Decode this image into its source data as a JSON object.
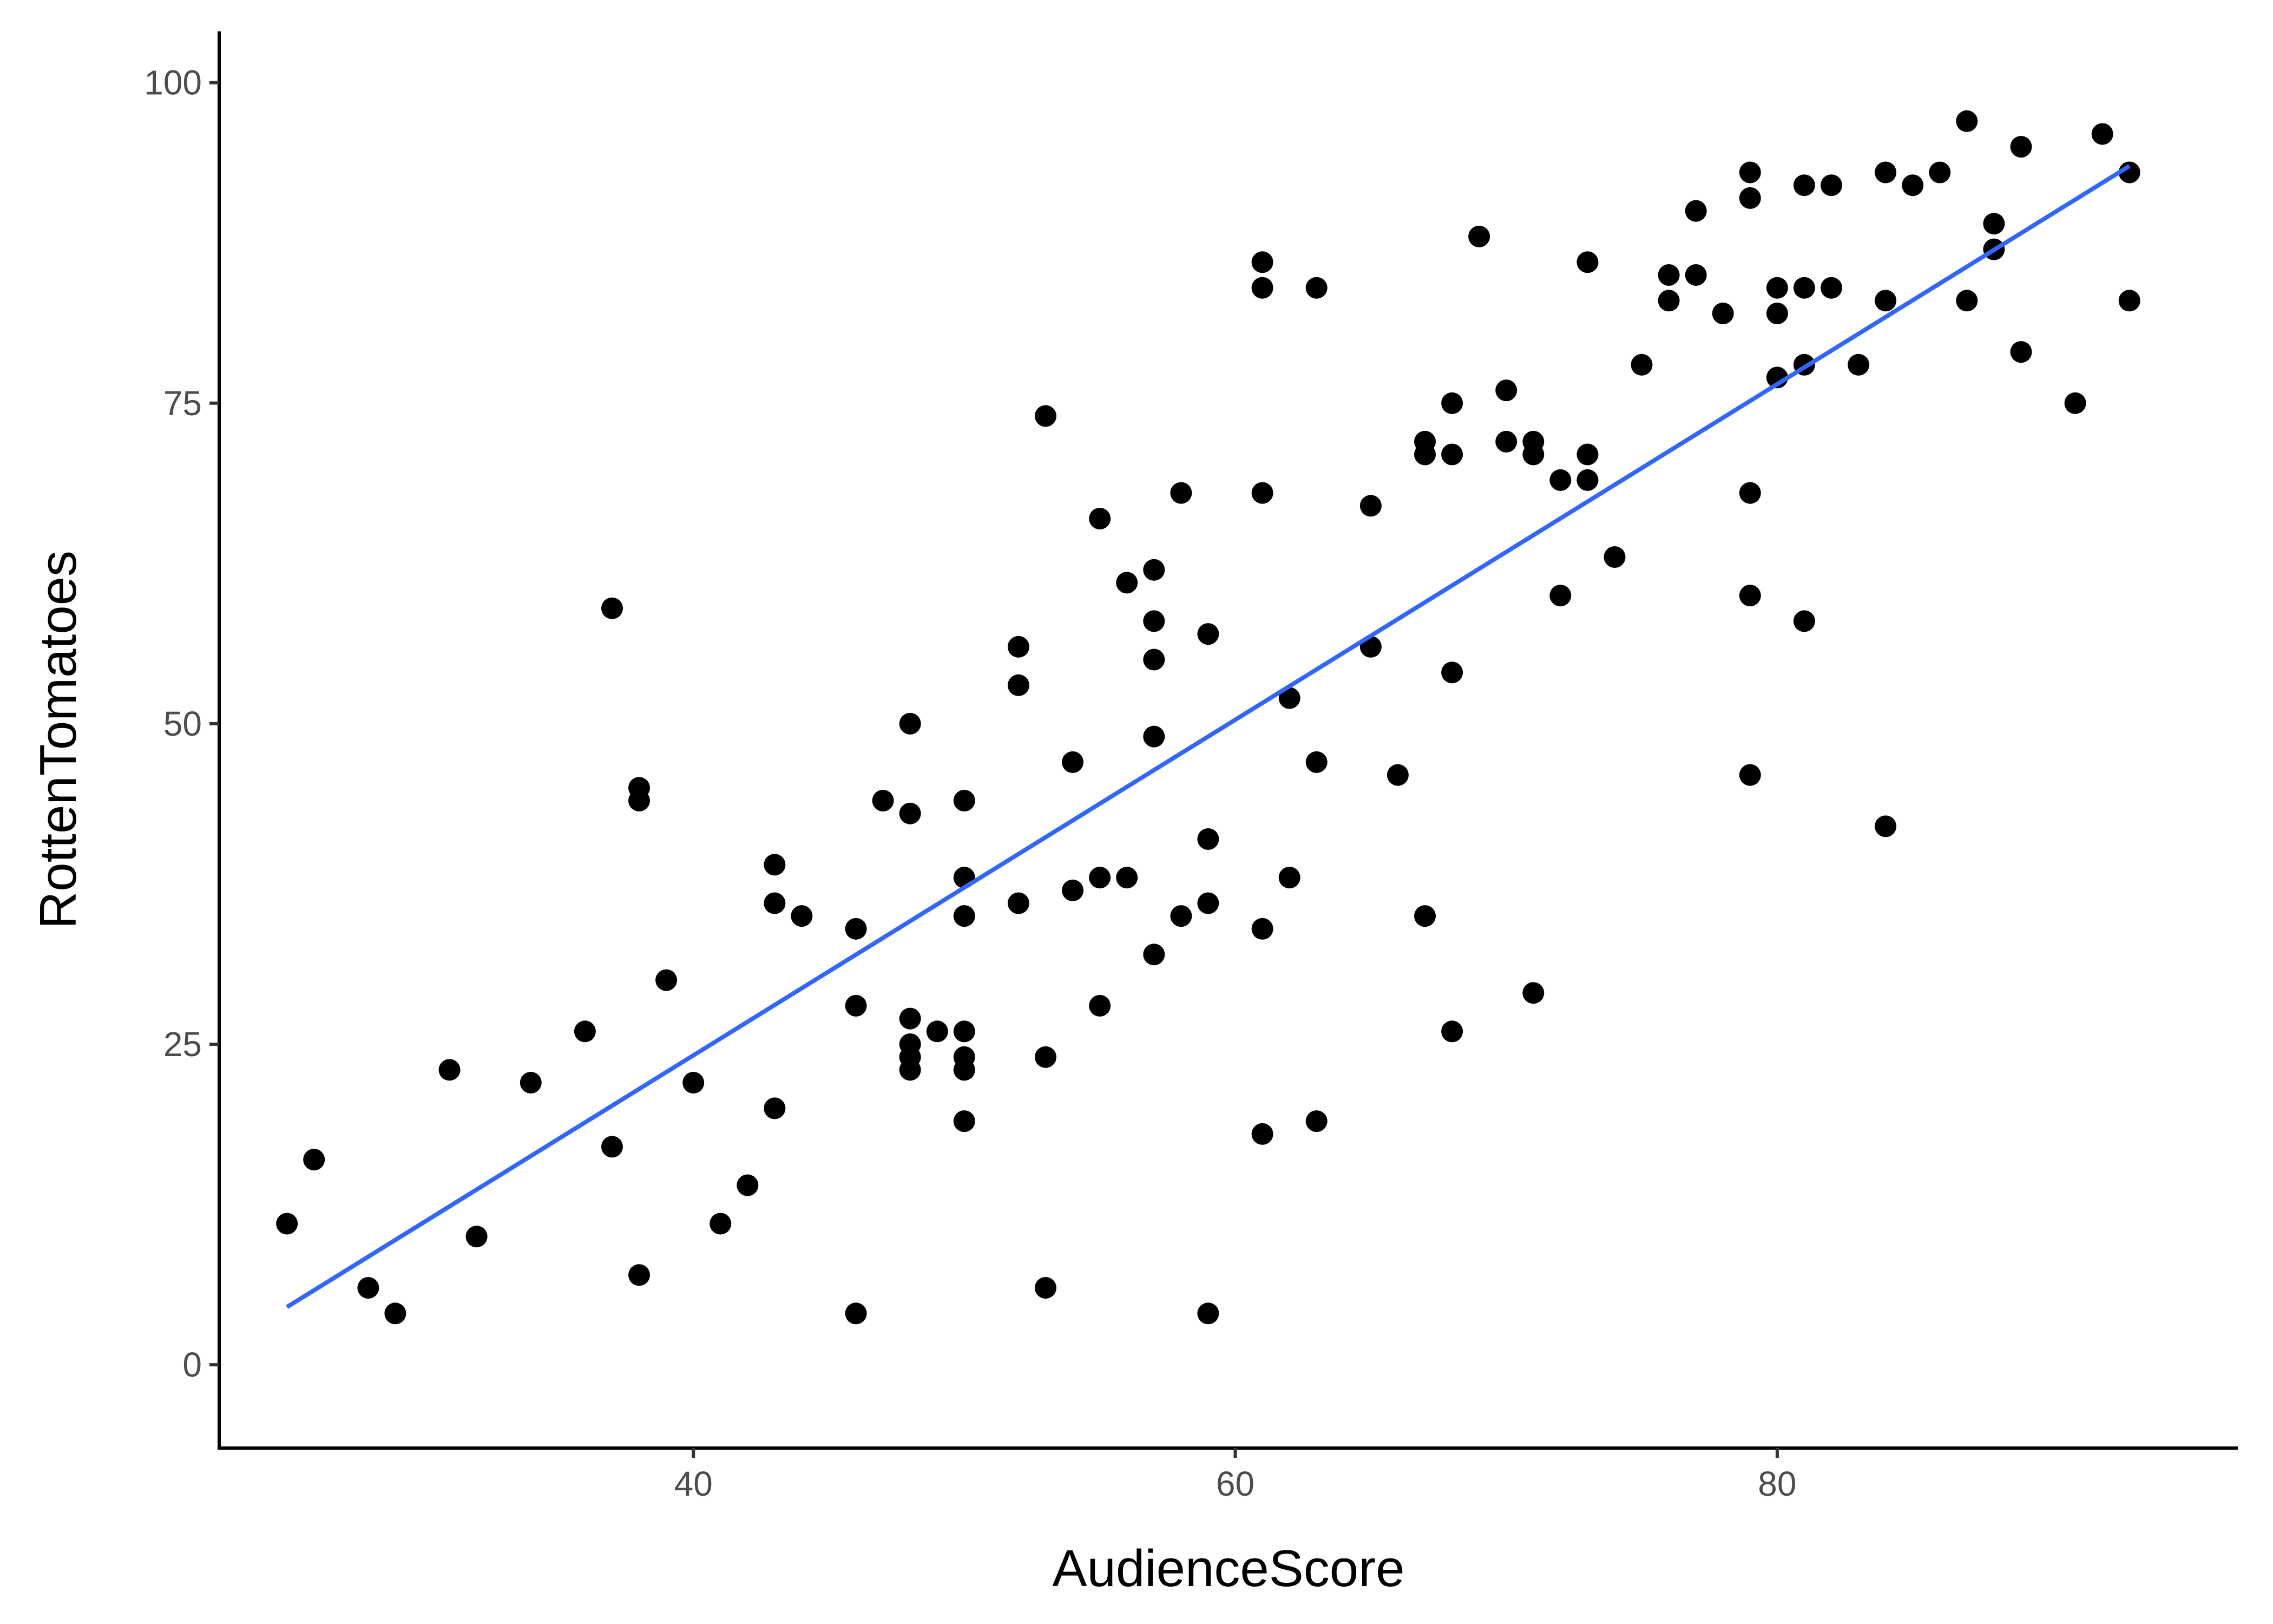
{
  "chart_data": {
    "type": "scatter",
    "title": "",
    "xlabel": "AudienceScore",
    "ylabel": "RottenTomatoes",
    "xlim": [
      22.5,
      97
    ],
    "ylim": [
      -6.5,
      104
    ],
    "x_ticks": [
      40,
      60,
      80
    ],
    "y_ticks": [
      0,
      25,
      50,
      75,
      100
    ],
    "grid": false,
    "legend": "none",
    "point_color": "#000000",
    "trend_color": "#3366ff",
    "trendline": {
      "method": "linear",
      "x": [
        25,
        93
      ],
      "y": [
        4.5,
        93.5
      ]
    },
    "points": [
      {
        "x": 25,
        "y": 11
      },
      {
        "x": 26,
        "y": 16
      },
      {
        "x": 28,
        "y": 6
      },
      {
        "x": 29,
        "y": 4
      },
      {
        "x": 31,
        "y": 23
      },
      {
        "x": 32,
        "y": 10
      },
      {
        "x": 34,
        "y": 22
      },
      {
        "x": 36,
        "y": 26
      },
      {
        "x": 37,
        "y": 59
      },
      {
        "x": 37,
        "y": 17
      },
      {
        "x": 38,
        "y": 45
      },
      {
        "x": 38,
        "y": 44
      },
      {
        "x": 38,
        "y": 7
      },
      {
        "x": 39,
        "y": 30
      },
      {
        "x": 40,
        "y": 22
      },
      {
        "x": 41,
        "y": 11
      },
      {
        "x": 42,
        "y": 14
      },
      {
        "x": 43,
        "y": 39
      },
      {
        "x": 43,
        "y": 36
      },
      {
        "x": 43,
        "y": 20
      },
      {
        "x": 44,
        "y": 35
      },
      {
        "x": 46,
        "y": 34
      },
      {
        "x": 46,
        "y": 28
      },
      {
        "x": 46,
        "y": 4
      },
      {
        "x": 47,
        "y": 44
      },
      {
        "x": 48,
        "y": 50
      },
      {
        "x": 48,
        "y": 43
      },
      {
        "x": 48,
        "y": 27
      },
      {
        "x": 48,
        "y": 25
      },
      {
        "x": 48,
        "y": 24
      },
      {
        "x": 48,
        "y": 23
      },
      {
        "x": 49,
        "y": 26
      },
      {
        "x": 50,
        "y": 44
      },
      {
        "x": 50,
        "y": 38
      },
      {
        "x": 50,
        "y": 35
      },
      {
        "x": 50,
        "y": 26
      },
      {
        "x": 50,
        "y": 24
      },
      {
        "x": 50,
        "y": 23
      },
      {
        "x": 50,
        "y": 19
      },
      {
        "x": 52,
        "y": 56
      },
      {
        "x": 52,
        "y": 53
      },
      {
        "x": 52,
        "y": 36
      },
      {
        "x": 53,
        "y": 74
      },
      {
        "x": 53,
        "y": 24
      },
      {
        "x": 53,
        "y": 6
      },
      {
        "x": 54,
        "y": 47
      },
      {
        "x": 54,
        "y": 37
      },
      {
        "x": 55,
        "y": 66
      },
      {
        "x": 55,
        "y": 38
      },
      {
        "x": 55,
        "y": 28
      },
      {
        "x": 56,
        "y": 61
      },
      {
        "x": 56,
        "y": 38
      },
      {
        "x": 57,
        "y": 62
      },
      {
        "x": 57,
        "y": 58
      },
      {
        "x": 57,
        "y": 55
      },
      {
        "x": 57,
        "y": 49
      },
      {
        "x": 57,
        "y": 32
      },
      {
        "x": 58,
        "y": 68
      },
      {
        "x": 58,
        "y": 35
      },
      {
        "x": 59,
        "y": 57
      },
      {
        "x": 59,
        "y": 41
      },
      {
        "x": 59,
        "y": 36
      },
      {
        "x": 59,
        "y": 4
      },
      {
        "x": 61,
        "y": 86
      },
      {
        "x": 61,
        "y": 84
      },
      {
        "x": 61,
        "y": 68
      },
      {
        "x": 61,
        "y": 34
      },
      {
        "x": 61,
        "y": 18
      },
      {
        "x": 62,
        "y": 52
      },
      {
        "x": 62,
        "y": 38
      },
      {
        "x": 63,
        "y": 84
      },
      {
        "x": 63,
        "y": 47
      },
      {
        "x": 63,
        "y": 19
      },
      {
        "x": 65,
        "y": 67
      },
      {
        "x": 65,
        "y": 56
      },
      {
        "x": 66,
        "y": 46
      },
      {
        "x": 67,
        "y": 72
      },
      {
        "x": 67,
        "y": 71
      },
      {
        "x": 67,
        "y": 35
      },
      {
        "x": 68,
        "y": 75
      },
      {
        "x": 68,
        "y": 71
      },
      {
        "x": 68,
        "y": 54
      },
      {
        "x": 68,
        "y": 26
      },
      {
        "x": 69,
        "y": 88
      },
      {
        "x": 70,
        "y": 76
      },
      {
        "x": 70,
        "y": 72
      },
      {
        "x": 71,
        "y": 72
      },
      {
        "x": 71,
        "y": 71
      },
      {
        "x": 71,
        "y": 29
      },
      {
        "x": 72,
        "y": 69
      },
      {
        "x": 72,
        "y": 60
      },
      {
        "x": 73,
        "y": 86
      },
      {
        "x": 73,
        "y": 71
      },
      {
        "x": 73,
        "y": 69
      },
      {
        "x": 74,
        "y": 63
      },
      {
        "x": 75,
        "y": 78
      },
      {
        "x": 76,
        "y": 85
      },
      {
        "x": 76,
        "y": 83
      },
      {
        "x": 77,
        "y": 90
      },
      {
        "x": 77,
        "y": 85
      },
      {
        "x": 78,
        "y": 82
      },
      {
        "x": 79,
        "y": 93
      },
      {
        "x": 79,
        "y": 91
      },
      {
        "x": 79,
        "y": 68
      },
      {
        "x": 79,
        "y": 60
      },
      {
        "x": 79,
        "y": 46
      },
      {
        "x": 80,
        "y": 84
      },
      {
        "x": 80,
        "y": 82
      },
      {
        "x": 80,
        "y": 77
      },
      {
        "x": 81,
        "y": 92
      },
      {
        "x": 81,
        "y": 84
      },
      {
        "x": 81,
        "y": 78
      },
      {
        "x": 81,
        "y": 58
      },
      {
        "x": 82,
        "y": 92
      },
      {
        "x": 82,
        "y": 84
      },
      {
        "x": 83,
        "y": 78
      },
      {
        "x": 84,
        "y": 93
      },
      {
        "x": 84,
        "y": 83
      },
      {
        "x": 84,
        "y": 42
      },
      {
        "x": 85,
        "y": 92
      },
      {
        "x": 86,
        "y": 93
      },
      {
        "x": 87,
        "y": 97
      },
      {
        "x": 87,
        "y": 83
      },
      {
        "x": 88,
        "y": 89
      },
      {
        "x": 88,
        "y": 87
      },
      {
        "x": 89,
        "y": 95
      },
      {
        "x": 89,
        "y": 79
      },
      {
        "x": 91,
        "y": 75
      },
      {
        "x": 92,
        "y": 96
      },
      {
        "x": 93,
        "y": 93
      },
      {
        "x": 93,
        "y": 83
      }
    ]
  }
}
